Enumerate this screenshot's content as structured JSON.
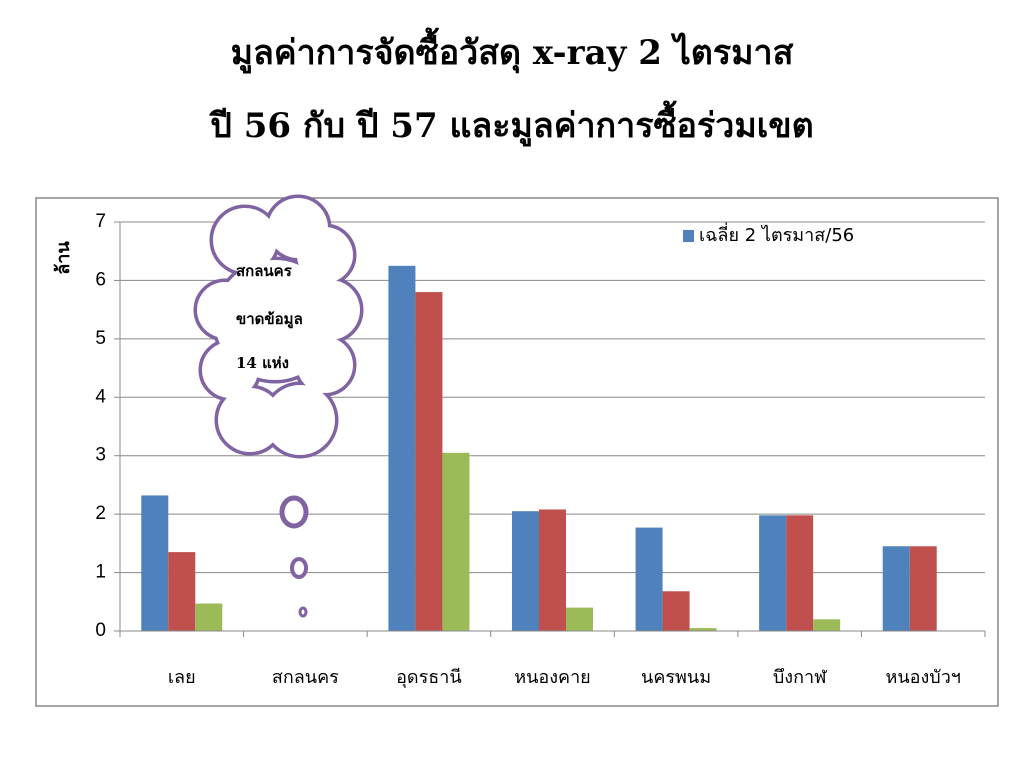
{
  "chart_data": {
    "type": "bar",
    "title": [
      "มูลค่าการจัดซื้อวัสดุ x-ray 2 ไตรมาส",
      "ปี 56 กับ ปี 57 และมูลค่าการซื้อร่วมเขต"
    ],
    "y_label": "ล้าน",
    "categories": [
      "เลย",
      "สกลนคร",
      "อุดรธานี",
      "หนองคาย",
      "นครพนม",
      "บึงกาฬ",
      "หนองบัวฯ"
    ],
    "series": [
      {
        "name": "เฉลี่ย 2 ไตรมาส/56",
        "color": "#4f81bd",
        "values": [
          2.32,
          null,
          6.25,
          2.05,
          1.77,
          1.98,
          1.45
        ]
      },
      {
        "color": "#c0504d",
        "values": [
          1.35,
          null,
          5.8,
          2.08,
          0.68,
          1.98,
          1.45
        ]
      },
      {
        "color": "#9bbb59",
        "values": [
          0.47,
          null,
          3.05,
          0.4,
          0.05,
          0.2,
          null
        ]
      }
    ],
    "annotation": [
      "สกลนคร",
      "ขาดข้อมูล",
      "14 แห่ง"
    ],
    "ylim": [
      0,
      7
    ],
    "yticks": [
      0,
      1,
      2,
      3,
      4,
      5,
      6,
      7
    ],
    "grid": true,
    "legend": "top-right"
  }
}
